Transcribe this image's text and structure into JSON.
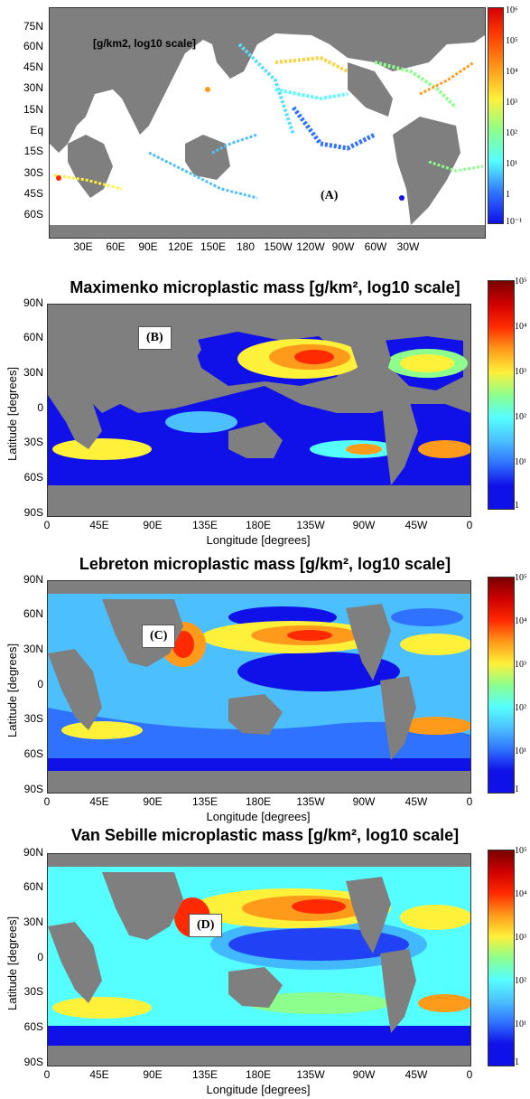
{
  "colors": {
    "land": "#7f7f7f",
    "scale": [
      "#1010e8",
      "#2f72ff",
      "#4cc0ff",
      "#55ffff",
      "#8cff8c",
      "#fff03a",
      "#ff9a1a",
      "#ff2a00",
      "#7a0000"
    ]
  },
  "panelA": {
    "units_label": "[g/km2, log10 scale]",
    "panel_letter": "(A)",
    "lat_ticks": [
      "75N",
      "60N",
      "45N",
      "30N",
      "15N",
      "Eq",
      "15S",
      "30S",
      "45S",
      "60S"
    ],
    "lon_ticks": [
      "30E",
      "60E",
      "90E",
      "120E",
      "150E",
      "180",
      "150W",
      "120W",
      "90W",
      "60W",
      "30W"
    ],
    "colorbar_labels": [
      "10⁶",
      "10⁵",
      "10⁴",
      "10³",
      "10²",
      "10¹",
      "1",
      "10⁻¹"
    ]
  },
  "panelB": {
    "title": "Maximenko microplastic mass [g/km², log10 scale]",
    "panel_letter": "(B)"
  },
  "panelC": {
    "title": "Lebreton microplastic mass [g/km², log10 scale]",
    "panel_letter": "(C)"
  },
  "panelD": {
    "title": "Van Sebille microplastic mass [g/km², log10 scale]",
    "panel_letter": "(D)"
  },
  "common_axes": {
    "ylabel": "Latitude [degrees]",
    "xlabel": "Longitude [degrees]",
    "lat_ticks": [
      "90N",
      "60N",
      "30N",
      "0",
      "30S",
      "60S",
      "90S"
    ],
    "lon_ticks": [
      "0",
      "45E",
      "90E",
      "135E",
      "180E",
      "135W",
      "90W",
      "45W",
      "0"
    ],
    "colorbar_labels": [
      "10⁵",
      "10⁴",
      "10³",
      "10²",
      "10¹",
      "1"
    ]
  }
}
